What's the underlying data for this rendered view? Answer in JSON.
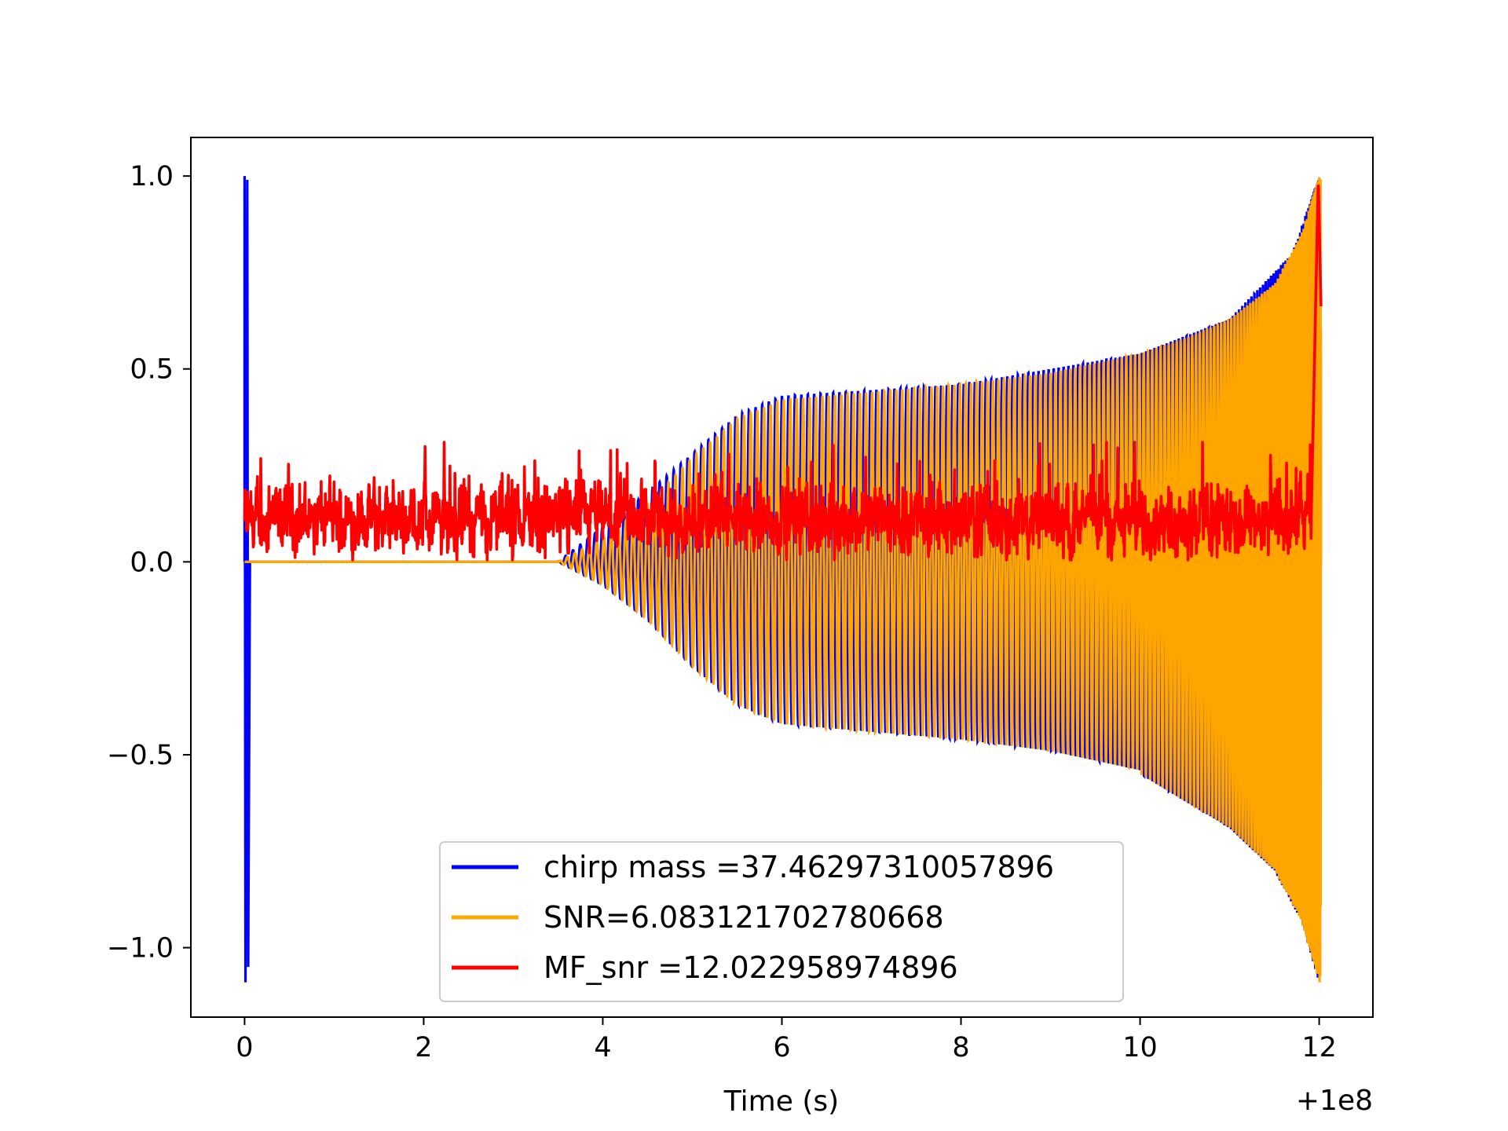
{
  "chart_data": {
    "type": "line",
    "title": "",
    "xlabel": "Time (s)",
    "ylabel": "",
    "x_offset_label": "+1e8",
    "xlim": [
      -0.6,
      12.6
    ],
    "ylim": [
      -1.18,
      1.1
    ],
    "x_ticks": [
      0,
      2,
      4,
      6,
      8,
      10,
      12
    ],
    "x_tick_labels": [
      "0",
      "2",
      "4",
      "6",
      "8",
      "10",
      "12"
    ],
    "y_ticks": [
      1.0,
      0.5,
      0.0,
      -0.5,
      -1.0
    ],
    "y_tick_labels": [
      "1.0",
      "0.5",
      "0.0",
      "−0.5",
      "−1.0"
    ],
    "grid": false,
    "legend_position": "lower-center",
    "series": [
      {
        "name": "chirp mass =37.46297310057896",
        "color": "#0000ff",
        "description": "normalized chirp template (inspiral ramps from ~3.5 to ~6, amplitude ~0.43 to 0.6 until merger at 12; leading spike at t=0 reaching 1.0 and -1.09)",
        "points": [
          [
            0.0,
            0.0
          ],
          [
            0.0,
            1.0
          ],
          [
            0.02,
            -1.09
          ],
          [
            0.05,
            0.99
          ],
          [
            0.07,
            0.0
          ],
          [
            3.5,
            0.0
          ],
          [
            4.5,
            0.18
          ],
          [
            5.5,
            0.38
          ],
          [
            6.0,
            0.43
          ],
          [
            8.0,
            0.46
          ],
          [
            10.0,
            0.54
          ],
          [
            11.0,
            0.63
          ],
          [
            11.7,
            0.8
          ],
          [
            12.0,
            1.0
          ]
        ]
      },
      {
        "name": "SNR=6.083121702780668",
        "color": "#ffa500",
        "description": "whitened strain data oscillation envelope, flat 0 until ~3.5 then growing to ±1 near t=12",
        "envelope": [
          [
            3.5,
            0.0
          ],
          [
            4.0,
            0.06
          ],
          [
            4.5,
            0.15
          ],
          [
            5.0,
            0.27
          ],
          [
            5.5,
            0.37
          ],
          [
            6.0,
            0.42
          ],
          [
            7.0,
            0.44
          ],
          [
            8.0,
            0.46
          ],
          [
            9.0,
            0.49
          ],
          [
            10.0,
            0.54
          ],
          [
            10.5,
            0.58
          ],
          [
            11.0,
            0.63
          ],
          [
            11.5,
            0.72
          ],
          [
            11.8,
            0.85
          ],
          [
            12.0,
            1.0
          ]
        ],
        "lower_envelope_extra": [
          [
            10.0,
            -0.55
          ],
          [
            11.0,
            -0.69
          ],
          [
            11.5,
            -0.8
          ],
          [
            11.8,
            -0.93
          ],
          [
            12.0,
            -1.09
          ]
        ]
      },
      {
        "name": "MF_snr =12.022958974896",
        "color": "#ff0000",
        "description": "matched-filter SNR time series, noisy between ~0.0 and ~0.28 with peak 1.0 at t=11.99",
        "baseline": 0.11,
        "noise_range": [
          0.0,
          0.31
        ],
        "peak": [
          11.99,
          1.0
        ],
        "x_range": [
          0.0,
          12.02
        ]
      }
    ]
  }
}
